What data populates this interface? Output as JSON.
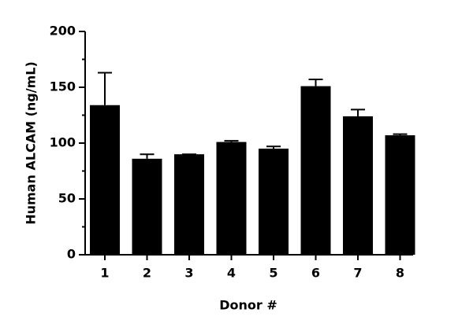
{
  "chart_data": {
    "type": "bar",
    "x_label": "Donor #",
    "y_label": "Human  ALCAM (ng/mL)",
    "categories": [
      "1",
      "2",
      "3",
      "4",
      "5",
      "6",
      "7",
      "8"
    ],
    "values": [
      134,
      86,
      90,
      101,
      95,
      151,
      124,
      107
    ],
    "errors": [
      29,
      4,
      0,
      1,
      2,
      6,
      6,
      1
    ],
    "color": "#000000",
    "ylim": [
      0,
      200
    ],
    "yticks": [
      0,
      50,
      100,
      150,
      200
    ],
    "minor_yticks": [
      25,
      75,
      125,
      175
    ],
    "grid": false
  }
}
